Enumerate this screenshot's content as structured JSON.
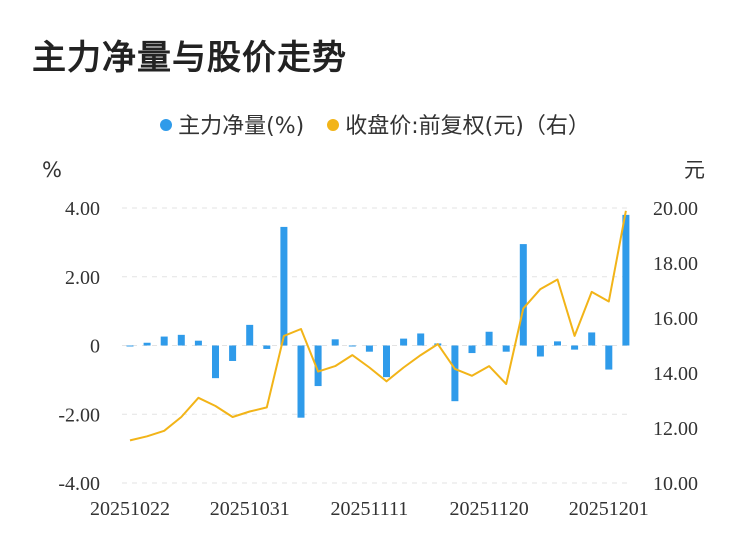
{
  "title": "主力净量与股价走势",
  "chart_data": {
    "type": "bar+line",
    "legend": [
      {
        "name": "主力净量(%)",
        "color": "#2f9bea"
      },
      {
        "name": "收盘价:前复权(元)（右）",
        "color": "#f2b418"
      }
    ],
    "legend_position": "top-center",
    "y_left_unit": "%",
    "y_right_unit": "元",
    "y_left_range": [
      -4,
      4
    ],
    "y_right_range": [
      10,
      20
    ],
    "y_left_ticks": [
      "4.00",
      "2.00",
      "0",
      "-2.00",
      "-4.00"
    ],
    "y_right_ticks": [
      "20.00",
      "18.00",
      "16.00",
      "14.00",
      "12.00",
      "10.00"
    ],
    "x_tick_labels": [
      {
        "index": 0,
        "label": "20251022"
      },
      {
        "index": 7,
        "label": "20251031"
      },
      {
        "index": 14,
        "label": "20251111"
      },
      {
        "index": 21,
        "label": "20251120"
      },
      {
        "index": 28,
        "label": "20251201"
      }
    ],
    "grid": true,
    "bar_series": {
      "name": "主力净量(%)",
      "values": [
        0.0,
        0.08,
        0.26,
        0.31,
        0.14,
        -0.95,
        -0.45,
        0.6,
        -0.1,
        3.45,
        -2.1,
        -1.18,
        0.18,
        0.0,
        -0.18,
        -0.92,
        0.2,
        0.35,
        0.06,
        -1.62,
        -0.22,
        0.4,
        -0.18,
        2.95,
        -0.32,
        0.12,
        -0.12,
        0.38,
        -0.7,
        3.8
      ]
    },
    "line_series": {
      "name": "收盘价:前复权(元)（右）",
      "values": [
        11.55,
        11.7,
        11.9,
        12.4,
        13.1,
        12.8,
        12.4,
        12.6,
        12.75,
        15.35,
        15.6,
        14.05,
        14.25,
        14.65,
        14.2,
        13.7,
        14.2,
        14.65,
        15.05,
        14.15,
        13.9,
        14.25,
        13.6,
        16.35,
        17.05,
        17.4,
        15.35,
        16.95,
        16.6,
        19.9
      ]
    }
  }
}
